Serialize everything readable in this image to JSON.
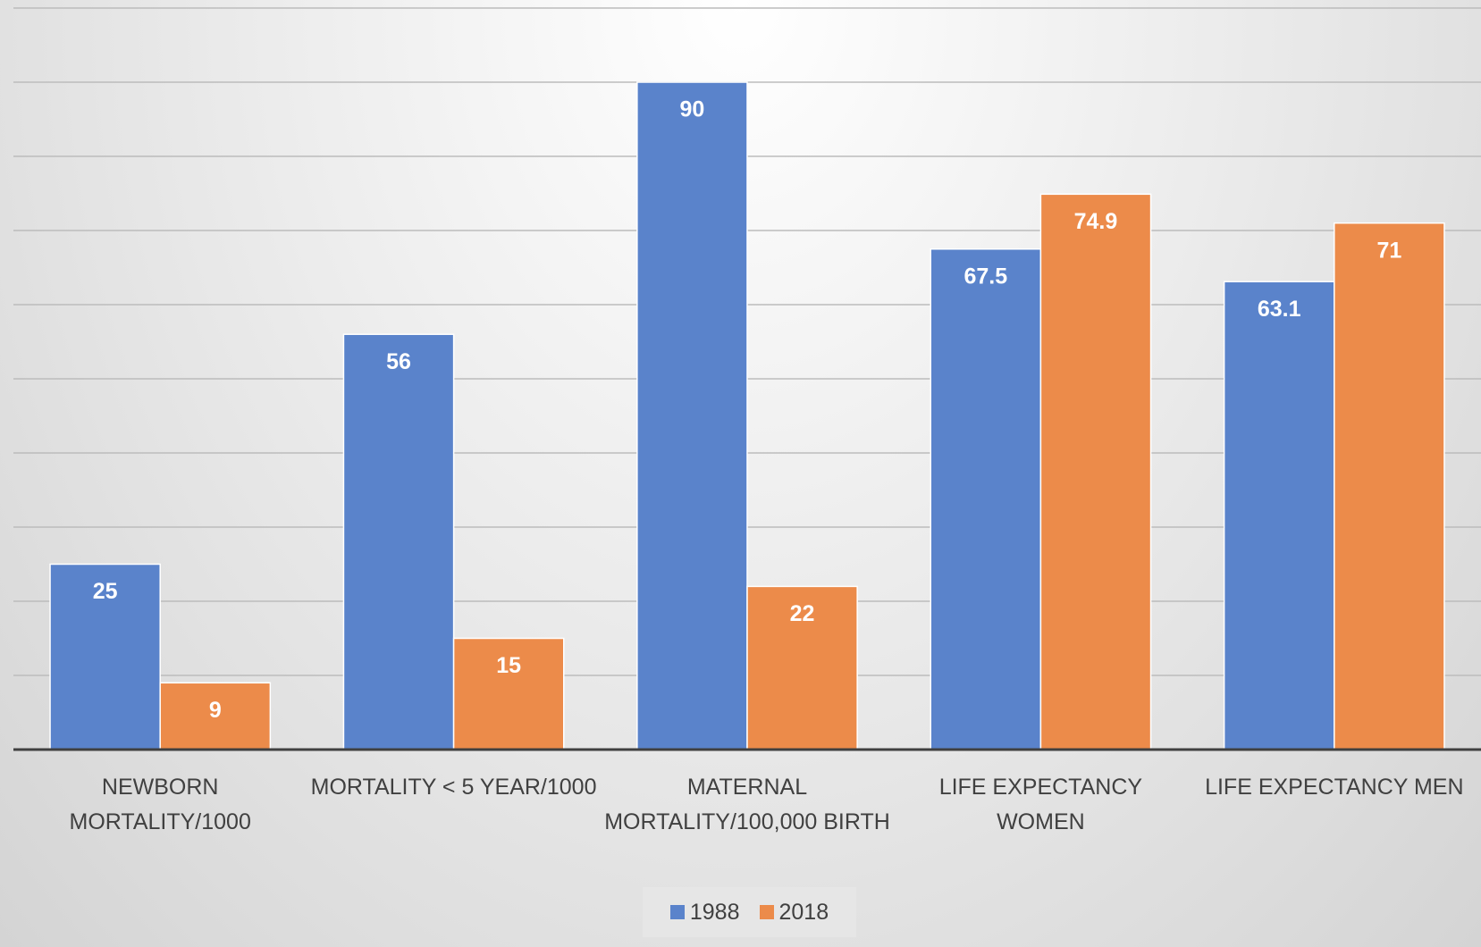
{
  "chart_data": {
    "type": "bar",
    "categories": [
      "NEWBORN MORTALITY/1000",
      "MORTALITY < 5 YEAR/1000",
      "MATERNAL MORTALITY/100,000 BIRTH",
      "LIFE EXPECTANCY WOMEN",
      "LIFE EXPECTANCY MEN"
    ],
    "series": [
      {
        "name": "1988",
        "color": "#5a83cb",
        "values": [
          25,
          56,
          90,
          67.5,
          63.1
        ]
      },
      {
        "name": "2018",
        "color": "#ec8b4a",
        "values": [
          9,
          15,
          22,
          74.9,
          71
        ]
      }
    ],
    "ylim": [
      0,
      100
    ],
    "yticks": [
      0,
      10,
      20,
      30,
      40,
      50,
      60,
      70,
      80,
      90,
      100
    ],
    "grid": true,
    "legend": "bottom"
  }
}
